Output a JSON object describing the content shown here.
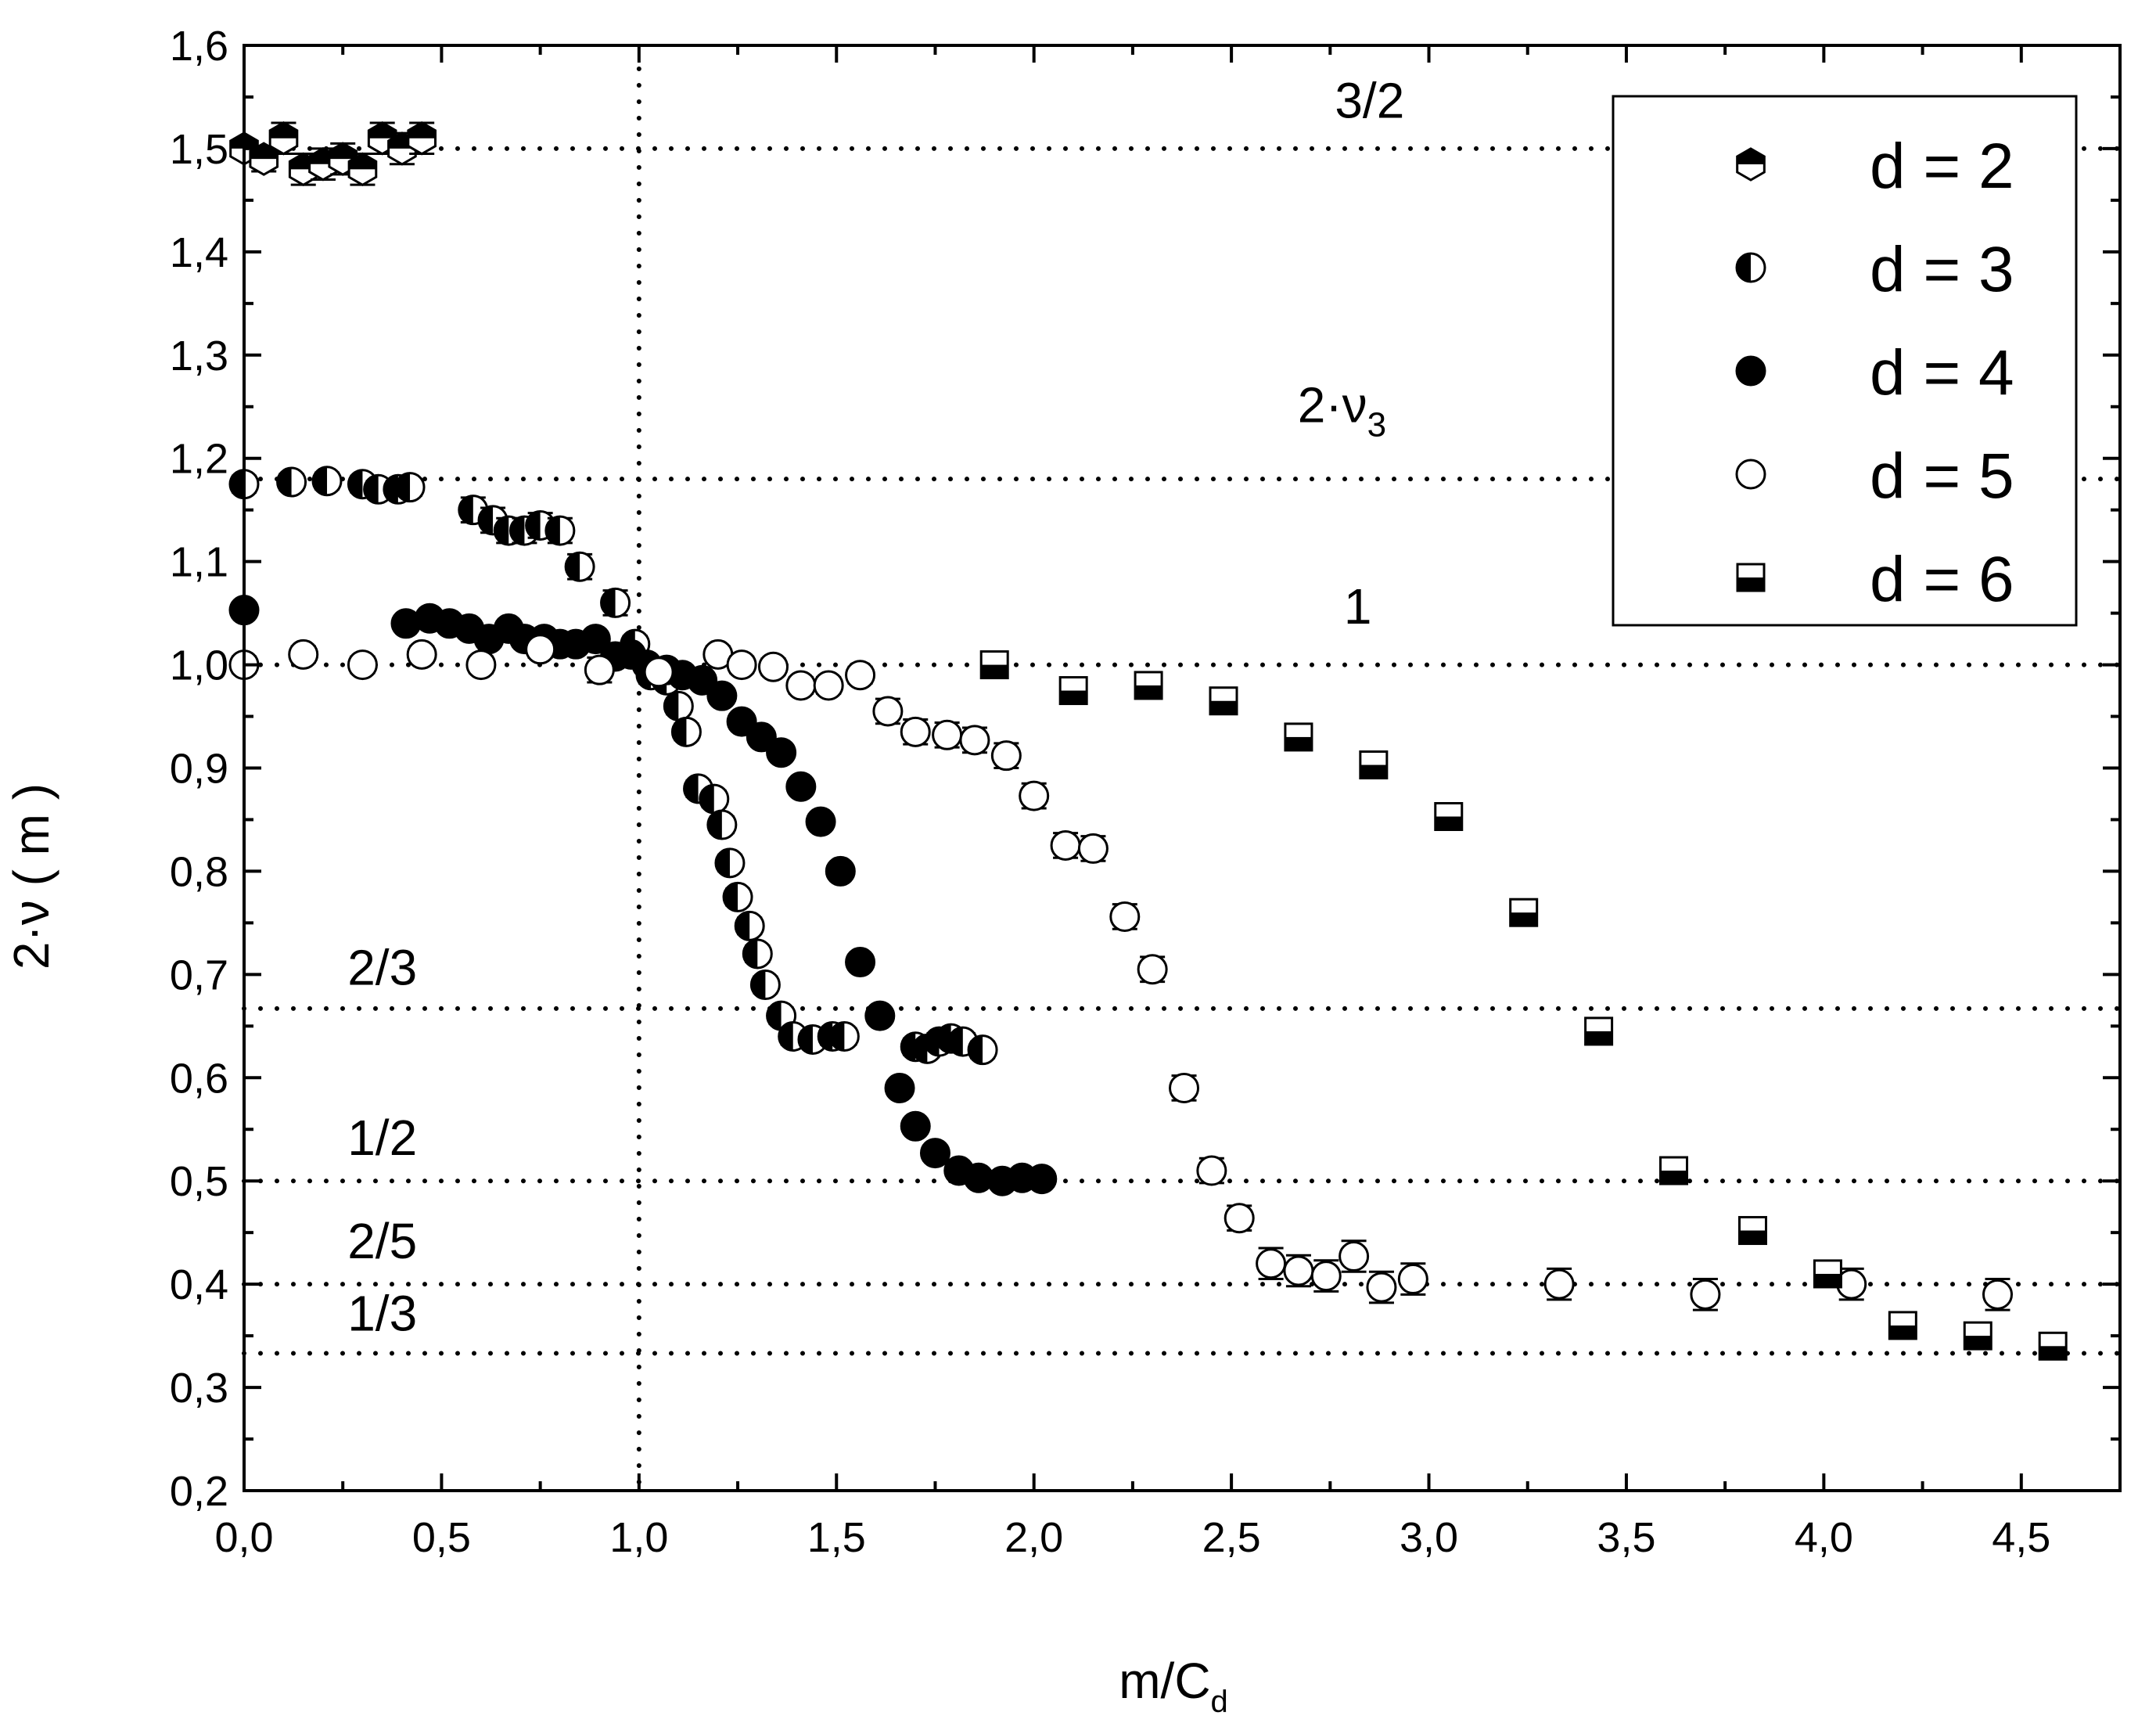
{
  "chart_data": {
    "type": "scatter",
    "xlabel": "m/C",
    "xlabel_sub": "d",
    "ylabel": "2·ν ( m )",
    "xlim": [
      0,
      4.75
    ],
    "ylim": [
      0.2,
      1.6
    ],
    "x_ticks": [
      {
        "value": 0.0,
        "label": "0,0"
      },
      {
        "value": 0.5,
        "label": "0,5"
      },
      {
        "value": 1.0,
        "label": "1,0"
      },
      {
        "value": 1.5,
        "label": "1,5"
      },
      {
        "value": 2.0,
        "label": "2,0"
      },
      {
        "value": 2.5,
        "label": "2,5"
      },
      {
        "value": 3.0,
        "label": "3,0"
      },
      {
        "value": 3.5,
        "label": "3,5"
      },
      {
        "value": 4.0,
        "label": "4,0"
      },
      {
        "value": 4.5,
        "label": "4,5"
      }
    ],
    "y_ticks": [
      {
        "value": 0.2,
        "label": "0,2"
      },
      {
        "value": 0.3,
        "label": "0,3"
      },
      {
        "value": 0.4,
        "label": "0,4"
      },
      {
        "value": 0.5,
        "label": "0,5"
      },
      {
        "value": 0.6,
        "label": "0,6"
      },
      {
        "value": 0.7,
        "label": "0,7"
      },
      {
        "value": 0.8,
        "label": "0,8"
      },
      {
        "value": 0.9,
        "label": "0,9"
      },
      {
        "value": 1.0,
        "label": "1,0"
      },
      {
        "value": 1.1,
        "label": "1,1"
      },
      {
        "value": 1.2,
        "label": "1,2"
      },
      {
        "value": 1.3,
        "label": "1,3"
      },
      {
        "value": 1.4,
        "label": "1,4"
      },
      {
        "value": 1.5,
        "label": "1,5"
      },
      {
        "value": 1.6,
        "label": "1,6"
      }
    ],
    "grid": false,
    "legend_position": "top-right",
    "reference_lines": [
      {
        "y": 1.5,
        "label": "3/2",
        "label_x": 2.85,
        "label_y": 1.53
      },
      {
        "y": 1.18,
        "label": "2·ν",
        "label_sub": "3",
        "label_x": 2.78,
        "label_y": 1.235
      },
      {
        "y": 1.0,
        "label": "1",
        "label_x": 2.82,
        "label_y": 1.04
      },
      {
        "y": 0.667,
        "label": "2/3",
        "label_x": 0.35,
        "label_y": 0.69
      },
      {
        "y": 0.5,
        "label": "1/2",
        "label_x": 0.35,
        "label_y": 0.525
      },
      {
        "y": 0.4,
        "label": "2/5",
        "label_x": 0.35,
        "label_y": 0.425
      },
      {
        "y": 0.333,
        "label": "1/3",
        "label_x": 0.35,
        "label_y": 0.355
      }
    ],
    "vertical_reference": {
      "x": 1.0
    },
    "series": [
      {
        "name": "d = 2",
        "marker": "hexagon-half",
        "points": [
          [
            0.0,
            1.5,
            0.008
          ],
          [
            0.05,
            1.49,
            0.012
          ],
          [
            0.1,
            1.51,
            0.015
          ],
          [
            0.15,
            1.48,
            0.015
          ],
          [
            0.2,
            1.485,
            0.015
          ],
          [
            0.25,
            1.49,
            0.015
          ],
          [
            0.3,
            1.48,
            0.015
          ],
          [
            0.35,
            1.51,
            0.015
          ],
          [
            0.4,
            1.5,
            0.015
          ],
          [
            0.45,
            1.51,
            0.015
          ]
        ]
      },
      {
        "name": "d = 3",
        "marker": "circle-half",
        "points": [
          [
            0.0,
            1.175,
            0.008
          ],
          [
            0.12,
            1.177,
            0.008
          ],
          [
            0.21,
            1.178,
            0.008
          ],
          [
            0.3,
            1.175,
            0.008
          ],
          [
            0.34,
            1.17,
            0.008
          ],
          [
            0.39,
            1.17,
            0.008
          ],
          [
            0.42,
            1.172,
            0.008
          ],
          [
            0.58,
            1.15,
            0.012
          ],
          [
            0.63,
            1.14,
            0.012
          ],
          [
            0.67,
            1.13,
            0.012
          ],
          [
            0.71,
            1.13,
            0.012
          ],
          [
            0.75,
            1.135,
            0.012
          ],
          [
            0.8,
            1.13,
            0.012
          ],
          [
            0.85,
            1.095,
            0.012
          ],
          [
            0.94,
            1.06,
            0.012
          ],
          [
            0.99,
            1.02,
            0.008
          ],
          [
            1.03,
            0.99,
            0.008
          ],
          [
            1.07,
            0.985,
            0.008
          ],
          [
            1.1,
            0.96,
            0.008
          ],
          [
            1.12,
            0.935,
            0.008
          ],
          [
            1.15,
            0.88,
            0.008
          ],
          [
            1.19,
            0.87,
            0.008
          ],
          [
            1.21,
            0.845,
            0.008
          ],
          [
            1.23,
            0.808,
            0.008
          ],
          [
            1.25,
            0.775,
            0.008
          ],
          [
            1.28,
            0.747,
            0.008
          ],
          [
            1.3,
            0.72,
            0.008
          ],
          [
            1.32,
            0.69,
            0.008
          ],
          [
            1.36,
            0.66,
            0.008
          ],
          [
            1.39,
            0.64,
            0.008
          ],
          [
            1.44,
            0.637,
            0.008
          ],
          [
            1.49,
            0.64,
            0.008
          ],
          [
            1.52,
            0.64,
            0.008
          ],
          [
            1.7,
            0.63,
            0.008
          ],
          [
            1.73,
            0.628,
            0.008
          ],
          [
            1.76,
            0.635,
            0.008
          ],
          [
            1.79,
            0.638,
            0.008
          ],
          [
            1.82,
            0.635,
            0.008
          ],
          [
            1.87,
            0.627,
            0.008
          ]
        ]
      },
      {
        "name": "d = 4",
        "marker": "circle-filled",
        "points": [
          [
            0.0,
            1.053,
            0.0
          ],
          [
            0.41,
            1.04,
            0.0
          ],
          [
            0.47,
            1.045,
            0.0
          ],
          [
            0.52,
            1.04,
            0.0
          ],
          [
            0.57,
            1.035,
            0.0
          ],
          [
            0.62,
            1.025,
            0.0
          ],
          [
            0.67,
            1.035,
            0.0
          ],
          [
            0.71,
            1.025,
            0.0
          ],
          [
            0.76,
            1.025,
            0.0
          ],
          [
            0.8,
            1.02,
            0.0
          ],
          [
            0.84,
            1.02,
            0.0
          ],
          [
            0.89,
            1.025,
            0.0
          ],
          [
            0.94,
            1.008,
            0.0
          ],
          [
            0.98,
            1.01,
            0.0
          ],
          [
            1.02,
            1.0,
            0.0
          ],
          [
            1.07,
            0.995,
            0.0
          ],
          [
            1.11,
            0.99,
            0.0
          ],
          [
            1.16,
            0.985,
            0.0
          ],
          [
            1.21,
            0.97,
            0.0
          ],
          [
            1.26,
            0.945,
            0.0
          ],
          [
            1.31,
            0.93,
            0.0
          ],
          [
            1.36,
            0.915,
            0.0
          ],
          [
            1.41,
            0.882,
            0.0
          ],
          [
            1.46,
            0.848,
            0.0
          ],
          [
            1.51,
            0.8,
            0.0
          ],
          [
            1.56,
            0.712,
            0.0
          ],
          [
            1.61,
            0.66,
            0.0
          ],
          [
            1.66,
            0.59,
            0.0
          ],
          [
            1.7,
            0.553,
            0.0
          ],
          [
            1.75,
            0.527,
            0.0
          ],
          [
            1.81,
            0.51,
            0.0
          ],
          [
            1.86,
            0.503,
            0.0
          ],
          [
            1.92,
            0.5,
            0.0
          ],
          [
            1.97,
            0.503,
            0.0
          ],
          [
            2.02,
            0.502,
            0.0
          ]
        ]
      },
      {
        "name": "d = 5",
        "marker": "circle-open",
        "points": [
          [
            0.0,
            1.0,
            0.008
          ],
          [
            0.15,
            1.01,
            0.008
          ],
          [
            0.3,
            1.0,
            0.008
          ],
          [
            0.45,
            1.01,
            0.008
          ],
          [
            0.6,
            1.0,
            0.008
          ],
          [
            0.75,
            1.015,
            0.008
          ],
          [
            0.9,
            0.995,
            0.012
          ],
          [
            1.05,
            0.993,
            0.008
          ],
          [
            1.2,
            1.01,
            0.008
          ],
          [
            1.26,
            1.0,
            0.008
          ],
          [
            1.34,
            0.998,
            0.008
          ],
          [
            1.41,
            0.98,
            0.008
          ],
          [
            1.48,
            0.98,
            0.008
          ],
          [
            1.56,
            0.99,
            0.008
          ],
          [
            1.63,
            0.955,
            0.012
          ],
          [
            1.7,
            0.935,
            0.012
          ],
          [
            1.78,
            0.932,
            0.012
          ],
          [
            1.85,
            0.927,
            0.012
          ],
          [
            1.93,
            0.912,
            0.012
          ],
          [
            2.0,
            0.873,
            0.012
          ],
          [
            2.08,
            0.825,
            0.012
          ],
          [
            2.15,
            0.822,
            0.012
          ],
          [
            2.23,
            0.756,
            0.012
          ],
          [
            2.3,
            0.705,
            0.012
          ],
          [
            2.38,
            0.59,
            0.012
          ],
          [
            2.45,
            0.51,
            0.012
          ],
          [
            2.52,
            0.464,
            0.012
          ],
          [
            2.6,
            0.42,
            0.015
          ],
          [
            2.67,
            0.413,
            0.015
          ],
          [
            2.74,
            0.408,
            0.015
          ],
          [
            2.81,
            0.427,
            0.015
          ],
          [
            2.88,
            0.397,
            0.015
          ],
          [
            2.96,
            0.405,
            0.015
          ],
          [
            3.33,
            0.4,
            0.015
          ],
          [
            3.7,
            0.39,
            0.015
          ],
          [
            4.07,
            0.4,
            0.015
          ],
          [
            4.44,
            0.39,
            0.015
          ]
        ]
      },
      {
        "name": "d = 6",
        "marker": "square-half",
        "points": [
          [
            1.9,
            1.0,
            0.008
          ],
          [
            2.1,
            0.975,
            0.008
          ],
          [
            2.29,
            0.98,
            0.008
          ],
          [
            2.48,
            0.965,
            0.008
          ],
          [
            2.67,
            0.93,
            0.008
          ],
          [
            2.86,
            0.903,
            0.008
          ],
          [
            3.05,
            0.853,
            0.008
          ],
          [
            3.24,
            0.76,
            0.008
          ],
          [
            3.43,
            0.645,
            0.008
          ],
          [
            3.62,
            0.51,
            0.008
          ],
          [
            3.82,
            0.452,
            0.008
          ],
          [
            4.01,
            0.41,
            0.008
          ],
          [
            4.2,
            0.36,
            0.008
          ],
          [
            4.39,
            0.35,
            0.008
          ],
          [
            4.58,
            0.34,
            0.008
          ]
        ]
      }
    ]
  }
}
